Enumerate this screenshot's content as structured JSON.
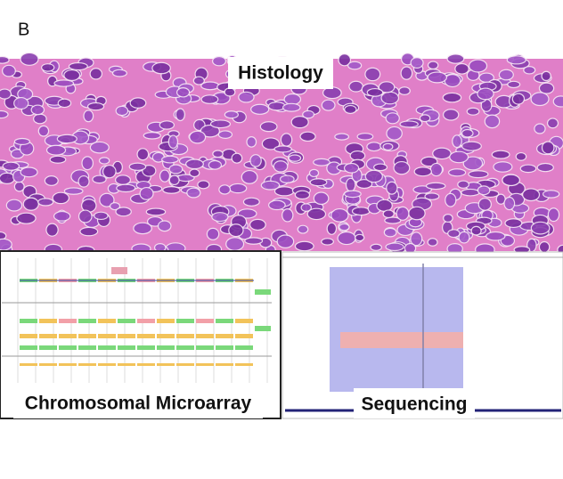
{
  "panel_label": "B",
  "panels": [
    {
      "label": "Histology"
    },
    {
      "label": "Chromosomal Microarray"
    },
    {
      "label": "Sequencing"
    }
  ]
}
